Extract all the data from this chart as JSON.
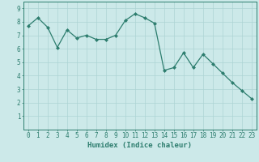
{
  "x": [
    0,
    1,
    2,
    3,
    4,
    5,
    6,
    7,
    8,
    9,
    10,
    11,
    12,
    13,
    14,
    15,
    16,
    17,
    18,
    19,
    20,
    21,
    22,
    23
  ],
  "y": [
    7.7,
    8.3,
    7.6,
    6.1,
    7.4,
    6.8,
    7.0,
    6.7,
    6.7,
    7.0,
    8.1,
    8.6,
    8.3,
    7.9,
    4.4,
    4.6,
    5.7,
    4.6,
    5.6,
    4.9,
    4.2,
    3.5,
    2.9,
    2.3
  ],
  "line_color": "#2d7d6e",
  "marker": "D",
  "marker_size": 2.0,
  "bg_color": "#cce9e9",
  "grid_color": "#add4d4",
  "xlabel": "Humidex (Indice chaleur)",
  "xlim": [
    -0.5,
    23.5
  ],
  "ylim": [
    0,
    9.5
  ],
  "yticks": [
    1,
    2,
    3,
    4,
    5,
    6,
    7,
    8,
    9
  ],
  "xticks": [
    0,
    1,
    2,
    3,
    4,
    5,
    6,
    7,
    8,
    9,
    10,
    11,
    12,
    13,
    14,
    15,
    16,
    17,
    18,
    19,
    20,
    21,
    22,
    23
  ],
  "tick_color": "#2d7d6e",
  "label_fontsize": 5.5,
  "xlabel_fontsize": 6.5,
  "axis_color": "#2d7d6e",
  "linewidth": 0.9
}
